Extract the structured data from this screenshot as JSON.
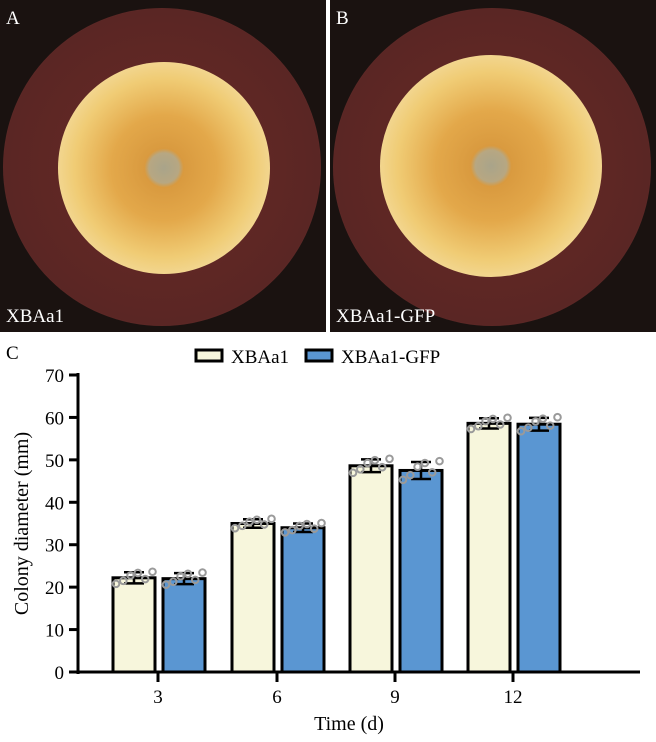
{
  "panels": [
    {
      "letter": "A",
      "label": "XBAa1"
    },
    {
      "letter": "B",
      "label": "XBAa1-GFP"
    }
  ],
  "chart_panel_letter": "C",
  "chart_data": {
    "type": "bar",
    "title": "",
    "xlabel": "Time (d)",
    "ylabel": "Colony diameter (mm)",
    "ylim": [
      0,
      70
    ],
    "yticks": [
      0,
      10,
      20,
      30,
      40,
      50,
      60,
      70
    ],
    "categories": [
      "3",
      "6",
      "9",
      "12"
    ],
    "legend_position": "top",
    "series": [
      {
        "name": "XBAa1",
        "color": "#f7f6dc",
        "values": [
          22.2,
          35.0,
          48.6,
          58.6
        ],
        "errors": [
          1.3,
          1.0,
          1.5,
          1.2
        ]
      },
      {
        "name": "XBAa1-GFP",
        "color": "#5a96d2",
        "values": [
          22.0,
          34.0,
          47.5,
          58.4
        ],
        "errors": [
          1.3,
          1.0,
          2.0,
          1.5
        ]
      }
    ]
  }
}
